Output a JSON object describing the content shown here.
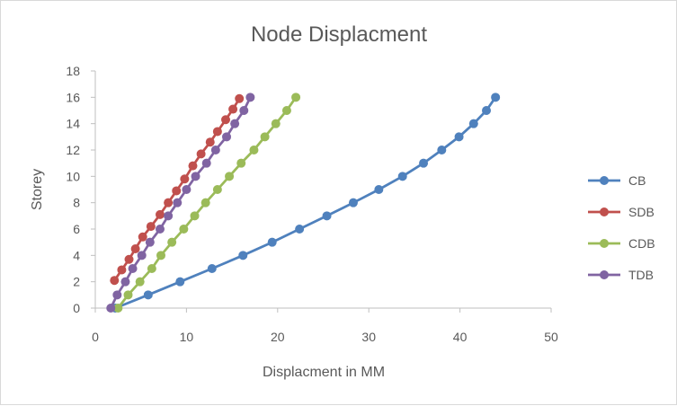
{
  "chart_data": {
    "type": "line",
    "title": "Node Displacment",
    "xlabel": "Displacment in MM",
    "ylabel": "Storey",
    "xlim": [
      0,
      50
    ],
    "ylim": [
      0,
      18
    ],
    "xticks": [
      0,
      10,
      20,
      30,
      40,
      50
    ],
    "yticks": [
      0,
      2,
      4,
      6,
      8,
      10,
      12,
      14,
      16,
      18
    ],
    "grid": false,
    "legend_position": "right",
    "series": [
      {
        "name": "CB",
        "color": "#4f81bd",
        "points": [
          [
            2.2,
            0
          ],
          [
            5.8,
            1
          ],
          [
            9.3,
            2
          ],
          [
            12.8,
            3
          ],
          [
            16.2,
            4
          ],
          [
            19.4,
            5
          ],
          [
            22.4,
            6
          ],
          [
            25.4,
            7
          ],
          [
            28.3,
            8
          ],
          [
            31.1,
            9
          ],
          [
            33.7,
            10
          ],
          [
            36.0,
            11
          ],
          [
            38.0,
            12
          ],
          [
            39.9,
            13
          ],
          [
            41.5,
            14
          ],
          [
            42.9,
            15
          ],
          [
            43.9,
            16
          ]
        ]
      },
      {
        "name": "SDB",
        "color": "#c0504d",
        "points": [
          [
            2.1,
            2.1
          ],
          [
            2.9,
            2.9
          ],
          [
            3.7,
            3.7
          ],
          [
            4.4,
            4.5
          ],
          [
            5.2,
            5.4
          ],
          [
            6.1,
            6.2
          ],
          [
            7.1,
            7.1
          ],
          [
            8.0,
            8.0
          ],
          [
            8.9,
            8.9
          ],
          [
            9.8,
            9.8
          ],
          [
            10.7,
            10.8
          ],
          [
            11.6,
            11.7
          ],
          [
            12.6,
            12.6
          ],
          [
            13.4,
            13.4
          ],
          [
            14.3,
            14.3
          ],
          [
            15.1,
            15.1
          ],
          [
            15.8,
            15.9
          ]
        ]
      },
      {
        "name": "CDB",
        "color": "#9bbb59",
        "points": [
          [
            2.5,
            0
          ],
          [
            3.6,
            1
          ],
          [
            4.9,
            2
          ],
          [
            6.2,
            3
          ],
          [
            7.2,
            4
          ],
          [
            8.4,
            5
          ],
          [
            9.7,
            6
          ],
          [
            10.9,
            7
          ],
          [
            12.1,
            8
          ],
          [
            13.4,
            9
          ],
          [
            14.7,
            10
          ],
          [
            16.0,
            11
          ],
          [
            17.4,
            12
          ],
          [
            18.6,
            13
          ],
          [
            19.8,
            14
          ],
          [
            21.0,
            15
          ],
          [
            22.0,
            16
          ]
        ]
      },
      {
        "name": "TDB",
        "color": "#8064a2",
        "points": [
          [
            1.7,
            0
          ],
          [
            2.4,
            1
          ],
          [
            3.3,
            2
          ],
          [
            4.1,
            3
          ],
          [
            5.1,
            4
          ],
          [
            6.0,
            5
          ],
          [
            7.1,
            6
          ],
          [
            8.0,
            7
          ],
          [
            9.0,
            8
          ],
          [
            10.0,
            9
          ],
          [
            11.0,
            10
          ],
          [
            12.2,
            11
          ],
          [
            13.2,
            12
          ],
          [
            14.4,
            13
          ],
          [
            15.3,
            14
          ],
          [
            16.3,
            15
          ],
          [
            17.0,
            16
          ]
        ]
      }
    ]
  }
}
